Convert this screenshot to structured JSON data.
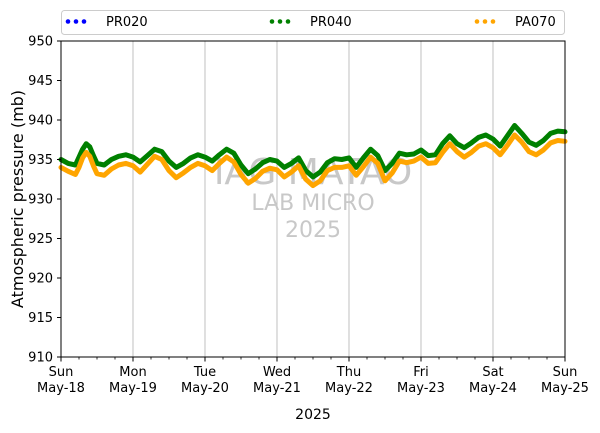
{
  "chart_data": {
    "type": "line",
    "title": "",
    "xlabel": "2025",
    "ylabel": "Atmospheric pressure (mb)",
    "ylim": [
      910,
      950
    ],
    "yticks": [
      910,
      915,
      920,
      925,
      930,
      935,
      940,
      945,
      950
    ],
    "grid": "vertical",
    "legend_position": "top",
    "x_ticks": [
      {
        "x": 0,
        "day": "Sun",
        "date": "May-18"
      },
      {
        "x": 1,
        "day": "Mon",
        "date": "May-19"
      },
      {
        "x": 2,
        "day": "Tue",
        "date": "May-20"
      },
      {
        "x": 3,
        "day": "Wed",
        "date": "May-21"
      },
      {
        "x": 4,
        "day": "Thu",
        "date": "May-22"
      },
      {
        "x": 5,
        "day": "Fri",
        "date": "May-23"
      },
      {
        "x": 6,
        "day": "Sat",
        "date": "May-24"
      },
      {
        "x": 7,
        "day": "Sun",
        "date": "May-25"
      }
    ],
    "watermark": {
      "lines": [
        "IAG MATAO",
        "LAB MICRO",
        "2025"
      ]
    },
    "series": [
      {
        "name": "PR020",
        "color": "#0000ff",
        "x": [],
        "values": []
      },
      {
        "name": "PR040",
        "color": "#008000",
        "x": [
          0,
          0.1,
          0.2,
          0.25,
          0.3,
          0.35,
          0.4,
          0.45,
          0.5,
          0.6,
          0.7,
          0.8,
          0.9,
          1.0,
          1.1,
          1.2,
          1.3,
          1.4,
          1.5,
          1.6,
          1.7,
          1.8,
          1.9,
          2.0,
          2.1,
          2.2,
          2.3,
          2.4,
          2.5,
          2.6,
          2.7,
          2.8,
          2.9,
          3.0,
          3.1,
          3.2,
          3.3,
          3.4,
          3.5,
          3.6,
          3.7,
          3.8,
          3.9,
          4.0,
          4.1,
          4.2,
          4.3,
          4.4,
          4.5,
          4.6,
          4.7,
          4.8,
          4.9,
          5.0,
          5.1,
          5.2,
          5.3,
          5.4,
          5.5,
          5.6,
          5.7,
          5.8,
          5.9,
          6.0,
          6.1,
          6.2,
          6.3,
          6.4,
          6.5,
          6.6,
          6.7,
          6.8,
          6.9,
          7.0
        ],
        "values": [
          935.0,
          934.5,
          934.3,
          935.3,
          936.3,
          937.0,
          936.6,
          935.5,
          934.5,
          934.3,
          935.0,
          935.4,
          935.6,
          935.3,
          934.7,
          935.5,
          936.3,
          936.0,
          934.8,
          934.0,
          934.5,
          935.2,
          935.6,
          935.3,
          934.8,
          935.6,
          936.3,
          935.8,
          934.3,
          933.2,
          933.8,
          934.6,
          935.0,
          934.8,
          934.0,
          934.5,
          935.2,
          933.6,
          932.8,
          933.4,
          934.6,
          935.1,
          935.0,
          935.2,
          934.0,
          935.2,
          936.3,
          935.5,
          933.6,
          934.5,
          935.8,
          935.6,
          935.7,
          936.2,
          935.5,
          935.6,
          937.0,
          938.0,
          937.0,
          936.5,
          937.1,
          937.8,
          938.1,
          937.6,
          936.7,
          938.0,
          939.3,
          938.3,
          937.2,
          936.8,
          937.4,
          938.3,
          938.6,
          938.5
        ]
      },
      {
        "name": "PA070",
        "color": "#ffa500",
        "x": [
          0,
          0.1,
          0.2,
          0.25,
          0.3,
          0.35,
          0.4,
          0.45,
          0.5,
          0.6,
          0.7,
          0.8,
          0.9,
          1.0,
          1.1,
          1.2,
          1.3,
          1.4,
          1.5,
          1.6,
          1.7,
          1.8,
          1.9,
          2.0,
          2.1,
          2.2,
          2.3,
          2.4,
          2.5,
          2.6,
          2.7,
          2.8,
          2.9,
          3.0,
          3.1,
          3.2,
          3.3,
          3.4,
          3.5,
          3.6,
          3.7,
          3.8,
          3.9,
          4.0,
          4.1,
          4.2,
          4.3,
          4.4,
          4.5,
          4.6,
          4.7,
          4.8,
          4.9,
          5.0,
          5.1,
          5.2,
          5.3,
          5.4,
          5.5,
          5.6,
          5.7,
          5.8,
          5.9,
          6.0,
          6.1,
          6.2,
          6.3,
          6.4,
          6.5,
          6.6,
          6.7,
          6.8,
          6.9,
          7.0
        ],
        "values": [
          934.0,
          933.5,
          933.1,
          934.0,
          935.2,
          935.9,
          935.4,
          934.2,
          933.2,
          933.0,
          933.8,
          934.3,
          934.5,
          934.2,
          933.4,
          934.4,
          935.4,
          935.0,
          933.6,
          932.7,
          933.3,
          934.0,
          934.5,
          934.2,
          933.6,
          934.5,
          935.3,
          934.7,
          933.1,
          932.0,
          932.6,
          933.5,
          933.9,
          933.7,
          932.8,
          933.4,
          934.2,
          932.5,
          931.7,
          932.3,
          933.6,
          934.0,
          934.0,
          934.2,
          933.0,
          934.1,
          935.3,
          934.5,
          932.3,
          933.3,
          934.8,
          934.6,
          934.8,
          935.3,
          934.5,
          934.6,
          935.9,
          937.0,
          936.0,
          935.3,
          935.9,
          936.7,
          937.0,
          936.5,
          935.6,
          936.8,
          938.1,
          937.2,
          936.0,
          935.6,
          936.2,
          937.1,
          937.4,
          937.3
        ]
      }
    ]
  }
}
